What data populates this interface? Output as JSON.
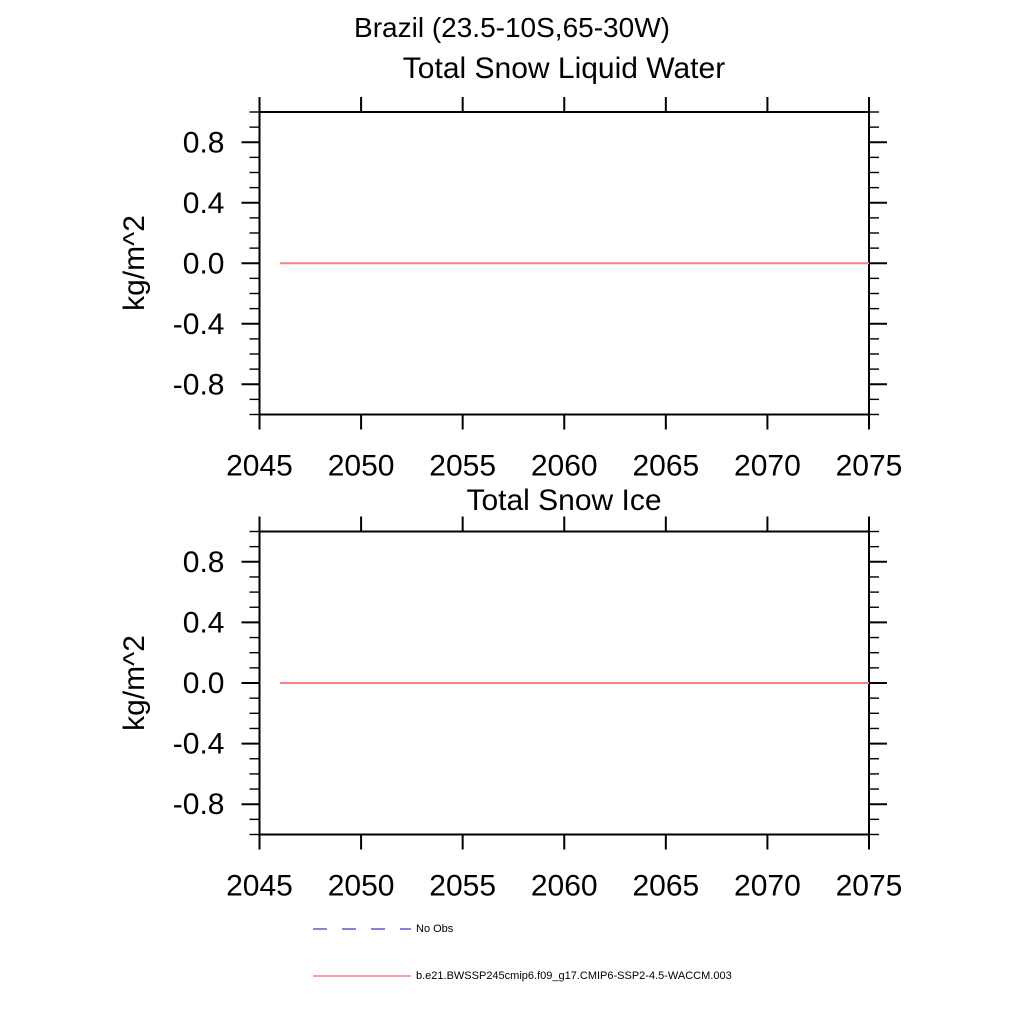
{
  "main_title": "Brazil (23.5-10S,65-30W)",
  "colors": {
    "axis": "#000000",
    "no_obs_blue": "#5c5ccd",
    "series_red": "#f98282",
    "background": "#ffffff"
  },
  "chart_data": [
    {
      "type": "line",
      "title": "Total Snow Liquid Water",
      "ylabel": "kg/m^2",
      "xlabel": "",
      "xlim": [
        2045,
        2075
      ],
      "ylim": [
        -1.0,
        1.0
      ],
      "xticks": [
        2045,
        2050,
        2055,
        2060,
        2065,
        2070,
        2075
      ],
      "xtick_labels": [
        "2045",
        "2050",
        "2055",
        "2060",
        "2065",
        "2070",
        "2075"
      ],
      "yticks": [
        0.8,
        0.4,
        0.0,
        -0.4,
        -0.8
      ],
      "ytick_labels": [
        "0.8",
        "0.4",
        "0.0",
        "-0.4",
        "-0.8"
      ],
      "y_minor_step": 0.1,
      "grid": false,
      "series": [
        {
          "name": "b.e21.BWSSP245cmip6.f09_g17.CMIP6-SSP2-4.5-WACCM.003",
          "color": "#f98282",
          "style": "solid",
          "x": [
            2046,
            2075
          ],
          "y": [
            0.0,
            0.0
          ]
        }
      ]
    },
    {
      "type": "line",
      "title": "Total Snow Ice",
      "ylabel": "kg/m^2",
      "xlabel": "",
      "xlim": [
        2045,
        2075
      ],
      "ylim": [
        -1.0,
        1.0
      ],
      "xticks": [
        2045,
        2050,
        2055,
        2060,
        2065,
        2070,
        2075
      ],
      "xtick_labels": [
        "2045",
        "2050",
        "2055",
        "2060",
        "2065",
        "2070",
        "2075"
      ],
      "yticks": [
        0.8,
        0.4,
        0.0,
        -0.4,
        -0.8
      ],
      "ytick_labels": [
        "0.8",
        "0.4",
        "0.0",
        "-0.4",
        "-0.8"
      ],
      "y_minor_step": 0.1,
      "grid": false,
      "series": [
        {
          "name": "b.e21.BWSSP245cmip6.f09_g17.CMIP6-SSP2-4.5-WACCM.003",
          "color": "#f98282",
          "style": "solid",
          "x": [
            2046,
            2075
          ],
          "y": [
            0.0,
            0.0
          ]
        }
      ]
    }
  ],
  "legend": {
    "position": "bottom-left",
    "items": [
      {
        "label": "No Obs",
        "color": "#5c5ccd",
        "style": "dashed"
      },
      {
        "label": "b.e21.BWSSP245cmip6.f09_g17.CMIP6-SSP2-4.5-WACCM.003",
        "color": "#f98282",
        "style": "solid"
      }
    ]
  }
}
